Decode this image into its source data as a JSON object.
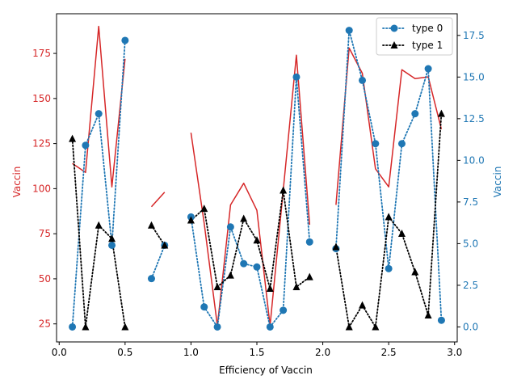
{
  "chart_data": {
    "type": "line",
    "xlabel": "Efficiency of Vaccin",
    "ylabel_left": "Vaccin",
    "ylabel_right": "Vaccin",
    "xlim": [
      -0.02,
      3.02
    ],
    "ylim_left": [
      15,
      197
    ],
    "ylim_right": [
      -0.9,
      18.8
    ],
    "x_ticks": [
      0.0,
      0.5,
      1.0,
      1.5,
      2.0,
      2.5,
      3.0
    ],
    "x_tick_labels": [
      "0.0",
      "0.5",
      "1.0",
      "1.5",
      "2.0",
      "2.5",
      "3.0"
    ],
    "y_left_ticks": [
      25,
      50,
      75,
      100,
      125,
      150,
      175
    ],
    "y_left_tick_labels": [
      "25",
      "50",
      "75",
      "100",
      "125",
      "150",
      "175"
    ],
    "y_right_ticks": [
      0.0,
      2.5,
      5.0,
      7.5,
      10.0,
      12.5,
      15.0,
      17.5
    ],
    "y_right_tick_labels": [
      "0.0",
      "2.5",
      "5.0",
      "7.5",
      "10.0",
      "12.5",
      "15.0",
      "17.5"
    ],
    "colors": {
      "red_series": "#d62728",
      "type0": "#1f77b4",
      "type1": "#000000",
      "left_axis": "#d62728",
      "right_axis": "#1f77b4"
    },
    "legend_position": "top-right",
    "series": [
      {
        "axis": "left",
        "style": "solid",
        "color": "#d62728",
        "marker": "none",
        "x": [
          0.1,
          0.2,
          0.3,
          0.4,
          0.5,
          0.6,
          0.7,
          0.8,
          0.9,
          1.0,
          1.1,
          1.2,
          1.3,
          1.4,
          1.5,
          1.6,
          1.7,
          1.8,
          1.9,
          2.0,
          2.1,
          2.2,
          2.3,
          2.4,
          2.5,
          2.6,
          2.7,
          2.8,
          2.9
        ],
        "y": [
          114,
          109,
          190,
          101,
          172,
          null,
          90,
          98,
          null,
          131,
          81,
          24,
          91,
          103,
          88,
          24,
          99,
          174,
          80,
          null,
          91,
          178,
          164,
          111,
          101,
          166,
          161,
          162,
          133
        ]
      },
      {
        "name": "type 0",
        "axis": "right",
        "style": "dotted",
        "color": "#1f77b4",
        "marker": "circle",
        "x": [
          0.1,
          0.2,
          0.3,
          0.4,
          0.5,
          0.6,
          0.7,
          0.8,
          0.9,
          1.0,
          1.1,
          1.2,
          1.3,
          1.4,
          1.5,
          1.6,
          1.7,
          1.8,
          1.9,
          2.0,
          2.1,
          2.2,
          2.3,
          2.4,
          2.5,
          2.6,
          2.7,
          2.8,
          2.9
        ],
        "y": [
          0.0,
          10.9,
          12.8,
          4.9,
          17.2,
          null,
          2.9,
          4.9,
          null,
          6.6,
          1.2,
          0.0,
          6.0,
          3.8,
          3.6,
          0.0,
          1.0,
          15.0,
          5.1,
          null,
          4.7,
          17.8,
          14.8,
          11.0,
          3.5,
          11.0,
          12.8,
          15.5,
          0.4
        ]
      },
      {
        "name": "type 1",
        "axis": "right",
        "style": "dotted",
        "color": "#000000",
        "marker": "triangle",
        "x": [
          0.1,
          0.2,
          0.3,
          0.4,
          0.5,
          0.6,
          0.7,
          0.8,
          0.9,
          1.0,
          1.1,
          1.2,
          1.3,
          1.4,
          1.5,
          1.6,
          1.7,
          1.8,
          1.9,
          2.0,
          2.1,
          2.2,
          2.3,
          2.4,
          2.5,
          2.6,
          2.7,
          2.8,
          2.9
        ],
        "y": [
          11.3,
          0.0,
          6.1,
          5.3,
          0.0,
          null,
          6.1,
          4.9,
          null,
          6.4,
          7.1,
          2.4,
          3.1,
          6.5,
          5.2,
          2.3,
          8.2,
          2.4,
          3.0,
          null,
          4.8,
          0.0,
          1.3,
          0.0,
          6.6,
          5.6,
          3.3,
          0.7,
          12.8
        ]
      }
    ]
  }
}
